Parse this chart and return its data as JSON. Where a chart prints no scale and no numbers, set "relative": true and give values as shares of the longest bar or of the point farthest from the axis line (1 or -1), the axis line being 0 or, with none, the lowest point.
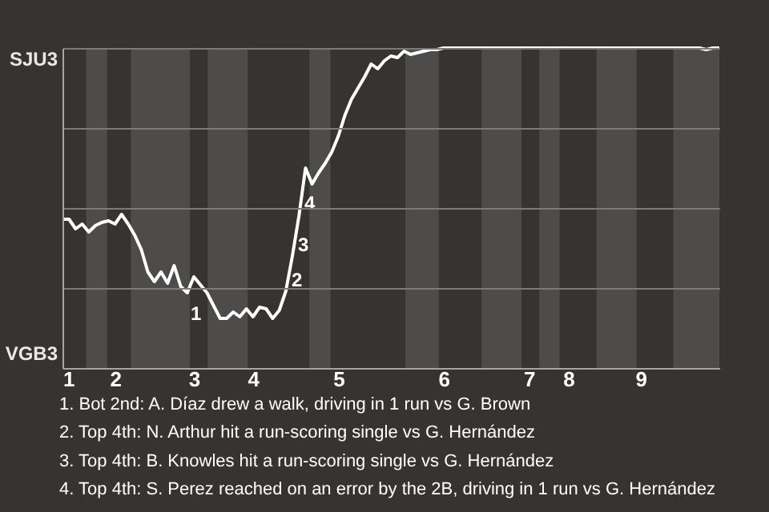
{
  "chart_data": {
    "type": "line",
    "relative": true,
    "categories": [
      "1",
      null,
      null,
      null,
      null,
      null,
      null,
      null,
      "2",
      null,
      null,
      null,
      null,
      null,
      null,
      null,
      null,
      null,
      null,
      null,
      "3",
      null,
      null,
      null,
      null,
      null,
      null,
      null,
      null,
      "4",
      null,
      null,
      null,
      null,
      null,
      null,
      null,
      null,
      null,
      null,
      null,
      null,
      "5",
      null,
      null,
      null,
      null,
      null,
      null,
      null,
      null,
      null,
      null,
      null,
      null,
      null,
      null,
      null,
      "6",
      null,
      null,
      null,
      null,
      null,
      null,
      null,
      null,
      null,
      null,
      null,
      null,
      "7",
      null,
      null,
      null,
      null,
      null,
      "8",
      null,
      null,
      null,
      null,
      null,
      null,
      null,
      null,
      null,
      null,
      "9",
      null,
      null,
      null,
      null,
      null,
      null,
      null,
      null,
      null,
      null,
      null,
      null
    ],
    "series": [
      {
        "color": "#ffffff",
        "values": [
          0.465,
          0.465,
          0.435,
          0.45,
          0.425,
          0.445,
          0.455,
          0.46,
          0.45,
          0.48,
          0.45,
          0.415,
          0.37,
          0.3,
          0.27,
          0.3,
          0.265,
          0.32,
          0.255,
          0.235,
          0.285,
          0.26,
          0.235,
          0.195,
          0.155,
          0.155,
          0.175,
          0.16,
          0.185,
          0.16,
          0.19,
          0.185,
          0.155,
          0.18,
          0.24,
          0.35,
          0.475,
          0.625,
          0.575,
          0.61,
          0.64,
          0.675,
          0.725,
          0.79,
          0.84,
          0.875,
          0.91,
          0.95,
          0.935,
          0.96,
          0.975,
          0.97,
          0.99,
          0.98,
          0.985,
          0.99,
          0.995,
          0.995,
          1,
          1,
          1,
          1,
          1,
          1,
          1,
          1,
          1,
          1,
          1,
          1,
          1,
          1,
          1,
          1,
          1,
          1,
          1,
          1,
          1,
          1,
          1,
          1,
          1,
          1,
          1,
          1,
          1,
          1,
          1,
          1,
          1,
          1,
          1,
          1,
          1,
          1,
          1,
          1,
          0.995,
          1,
          1
        ]
      }
    ],
    "grid": "y",
    "annotations": [
      "SJU3",
      "VGB3",
      "1",
      "2",
      "3",
      "4",
      "1. Bot 2nd: A. Díaz drew a walk, driving in 1 run vs G. Brown",
      "2. Top 4th: N. Arthur hit a run-scoring single vs G. Hernández",
      "3. Top 4th: B. Knowles hit a run-scoring single vs G. Hernández",
      "4. Top 4th: S. Perez reached on an error by the 2B, driving in 1 run vs G. Hernández"
    ]
  }
}
